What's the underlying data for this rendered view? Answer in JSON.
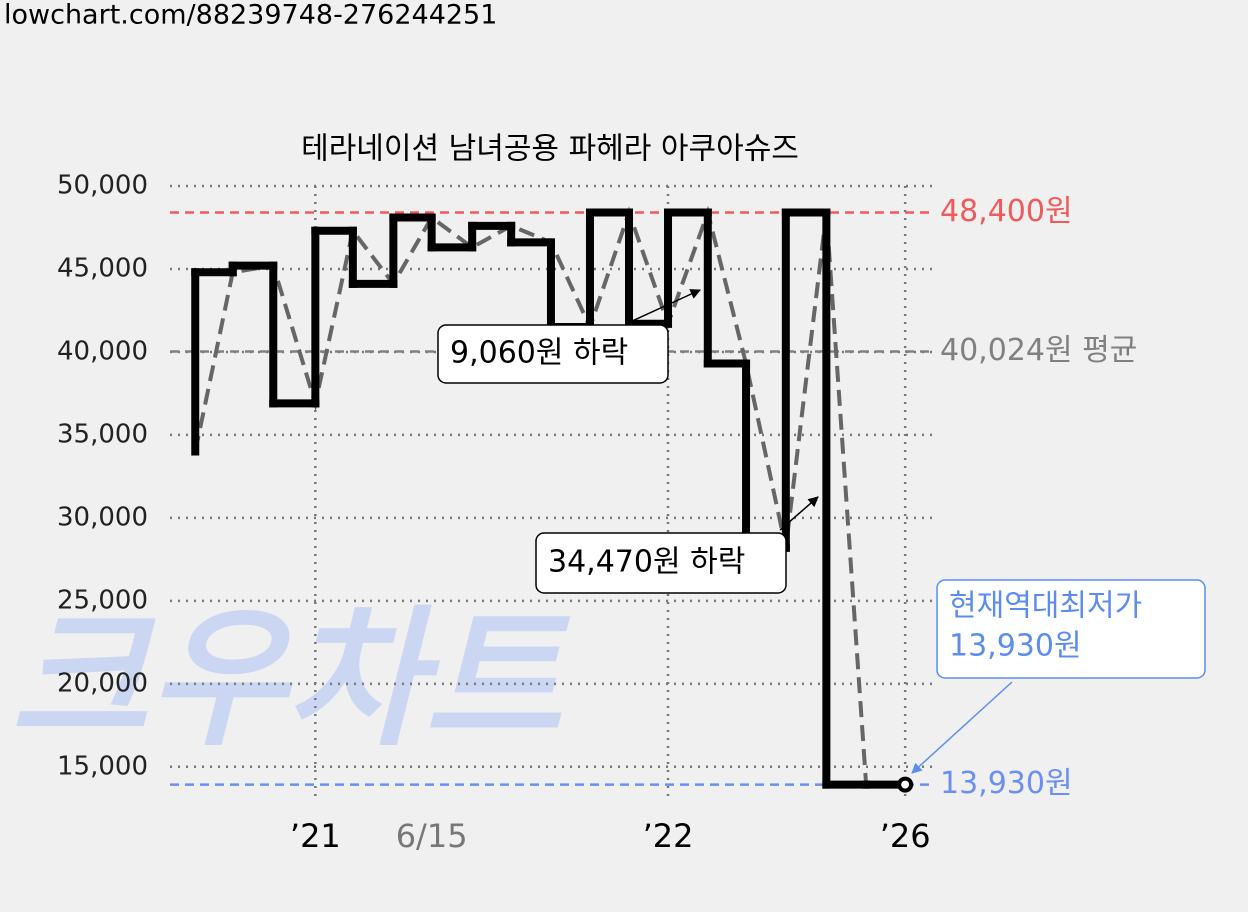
{
  "url": "lowchart.com/88239748-276244251",
  "chart_data": {
    "type": "line",
    "title": "테라네이션 남녀공용 파헤라 아쿠아슈즈",
    "watermark": "크우차트",
    "x": [
      3.3,
      8.2,
      13.5,
      19.0,
      23.9,
      29.2,
      34.2,
      39.5,
      44.6,
      49.8,
      54.9,
      60.0,
      65.1,
      70.3,
      75.3,
      80.5,
      85.8,
      91.0,
      96.1
    ],
    "series": [
      {
        "color": "#000000",
        "values": [
          34000,
          44800,
          45200,
          36900,
          47300,
          44100,
          48100,
          46300,
          47600,
          46600,
          41500,
          48400,
          41700,
          48400,
          39300,
          28200,
          48400,
          13930,
          13930
        ]
      }
    ],
    "xlim": [
      0,
      100
    ],
    "xticks": [
      {
        "value": 19.0,
        "label": "’21"
      },
      {
        "value": 34.2,
        "label": "6/15"
      },
      {
        "value": 65.1,
        "label": "’22"
      },
      {
        "value": 96.1,
        "label": "’26"
      }
    ],
    "xtick_colors": [
      "#000000",
      "#777777",
      "#000000",
      "#000000"
    ],
    "ylim": [
      13000,
      50000
    ],
    "yticks": [
      {
        "value": 15000,
        "label": "15,000"
      },
      {
        "value": 20000,
        "label": "20,000"
      },
      {
        "value": 25000,
        "label": "25,000"
      },
      {
        "value": 30000,
        "label": "30,000"
      },
      {
        "value": 35000,
        "label": "35,000"
      },
      {
        "value": 40000,
        "label": "40,000"
      },
      {
        "value": 45000,
        "label": "45,000"
      },
      {
        "value": 50000,
        "label": "50,000"
      }
    ],
    "grid": true,
    "hlines": [
      {
        "value": 48400,
        "label": "48,400원",
        "color": "#f05a5a"
      },
      {
        "value": 40024,
        "label": "40,024원 평균",
        "color": "#808080"
      },
      {
        "value": 13930,
        "label": "13,930원",
        "color": "#6a8ff0"
      }
    ],
    "annotations": [
      {
        "lines": [
          "9,060원 하락"
        ]
      },
      {
        "lines": [
          "34,470원 하락"
        ]
      },
      {
        "lines": [
          "현재역대최저가",
          "13,930원"
        ],
        "color": "#5b8def"
      }
    ]
  }
}
